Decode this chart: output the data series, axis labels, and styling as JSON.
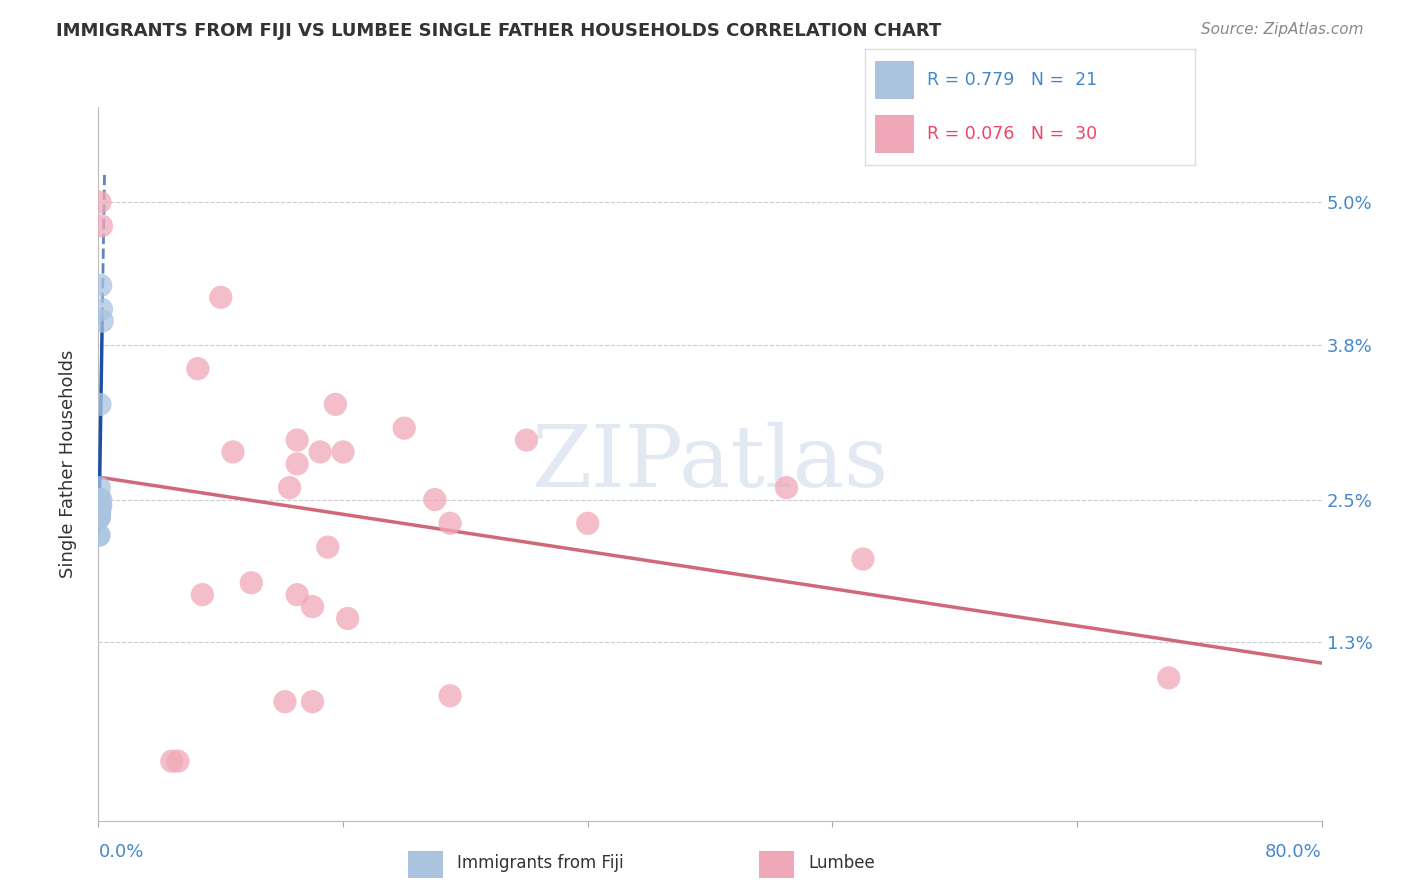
{
  "title": "IMMIGRANTS FROM FIJI VS LUMBEE SINGLE FATHER HOUSEHOLDS CORRELATION CHART",
  "source": "Source: ZipAtlas.com",
  "ylabel": "Single Father Households",
  "ytick_labels": [
    "1.3%",
    "2.5%",
    "3.8%",
    "5.0%"
  ],
  "ytick_values": [
    0.013,
    0.025,
    0.038,
    0.05
  ],
  "xlim": [
    0.0,
    0.8
  ],
  "ylim": [
    -0.002,
    0.058
  ],
  "fiji_R": "0.779",
  "fiji_N": "21",
  "lumbee_R": "0.076",
  "lumbee_N": "30",
  "fiji_color": "#aac4e0",
  "lumbee_color": "#f0a8b8",
  "fiji_line_color": "#1a50a8",
  "lumbee_line_color": "#d06878",
  "fiji_points_x": [
    0.0015,
    0.002,
    0.0008,
    0.001,
    0.0008,
    0.0006,
    0.0005,
    0.0005,
    0.0005,
    0.0005,
    0.0004,
    0.0004,
    0.0003,
    0.0003,
    0.0015,
    0.0012,
    0.0025,
    0.0003,
    0.0003,
    0.0015,
    0.0005
  ],
  "fiji_points_y": [
    0.043,
    0.041,
    0.025,
    0.033,
    0.024,
    0.026,
    0.025,
    0.0235,
    0.024,
    0.024,
    0.0235,
    0.024,
    0.022,
    0.022,
    0.025,
    0.0245,
    0.04,
    0.0235,
    0.0235,
    0.0245,
    0.0235
  ],
  "lumbee_points_x": [
    0.001,
    0.002,
    0.08,
    0.065,
    0.155,
    0.2,
    0.145,
    0.13,
    0.16,
    0.28,
    0.088,
    0.13,
    0.125,
    0.22,
    0.23,
    0.15,
    0.32,
    0.1,
    0.5,
    0.45,
    0.068,
    0.14,
    0.13,
    0.163,
    0.122,
    0.14,
    0.23,
    0.7,
    0.048,
    0.052
  ],
  "lumbee_points_y": [
    0.05,
    0.048,
    0.042,
    0.036,
    0.033,
    0.031,
    0.029,
    0.03,
    0.029,
    0.03,
    0.029,
    0.028,
    0.026,
    0.025,
    0.023,
    0.021,
    0.023,
    0.018,
    0.02,
    0.026,
    0.017,
    0.016,
    0.017,
    0.015,
    0.008,
    0.008,
    0.0085,
    0.01,
    0.003,
    0.003
  ]
}
